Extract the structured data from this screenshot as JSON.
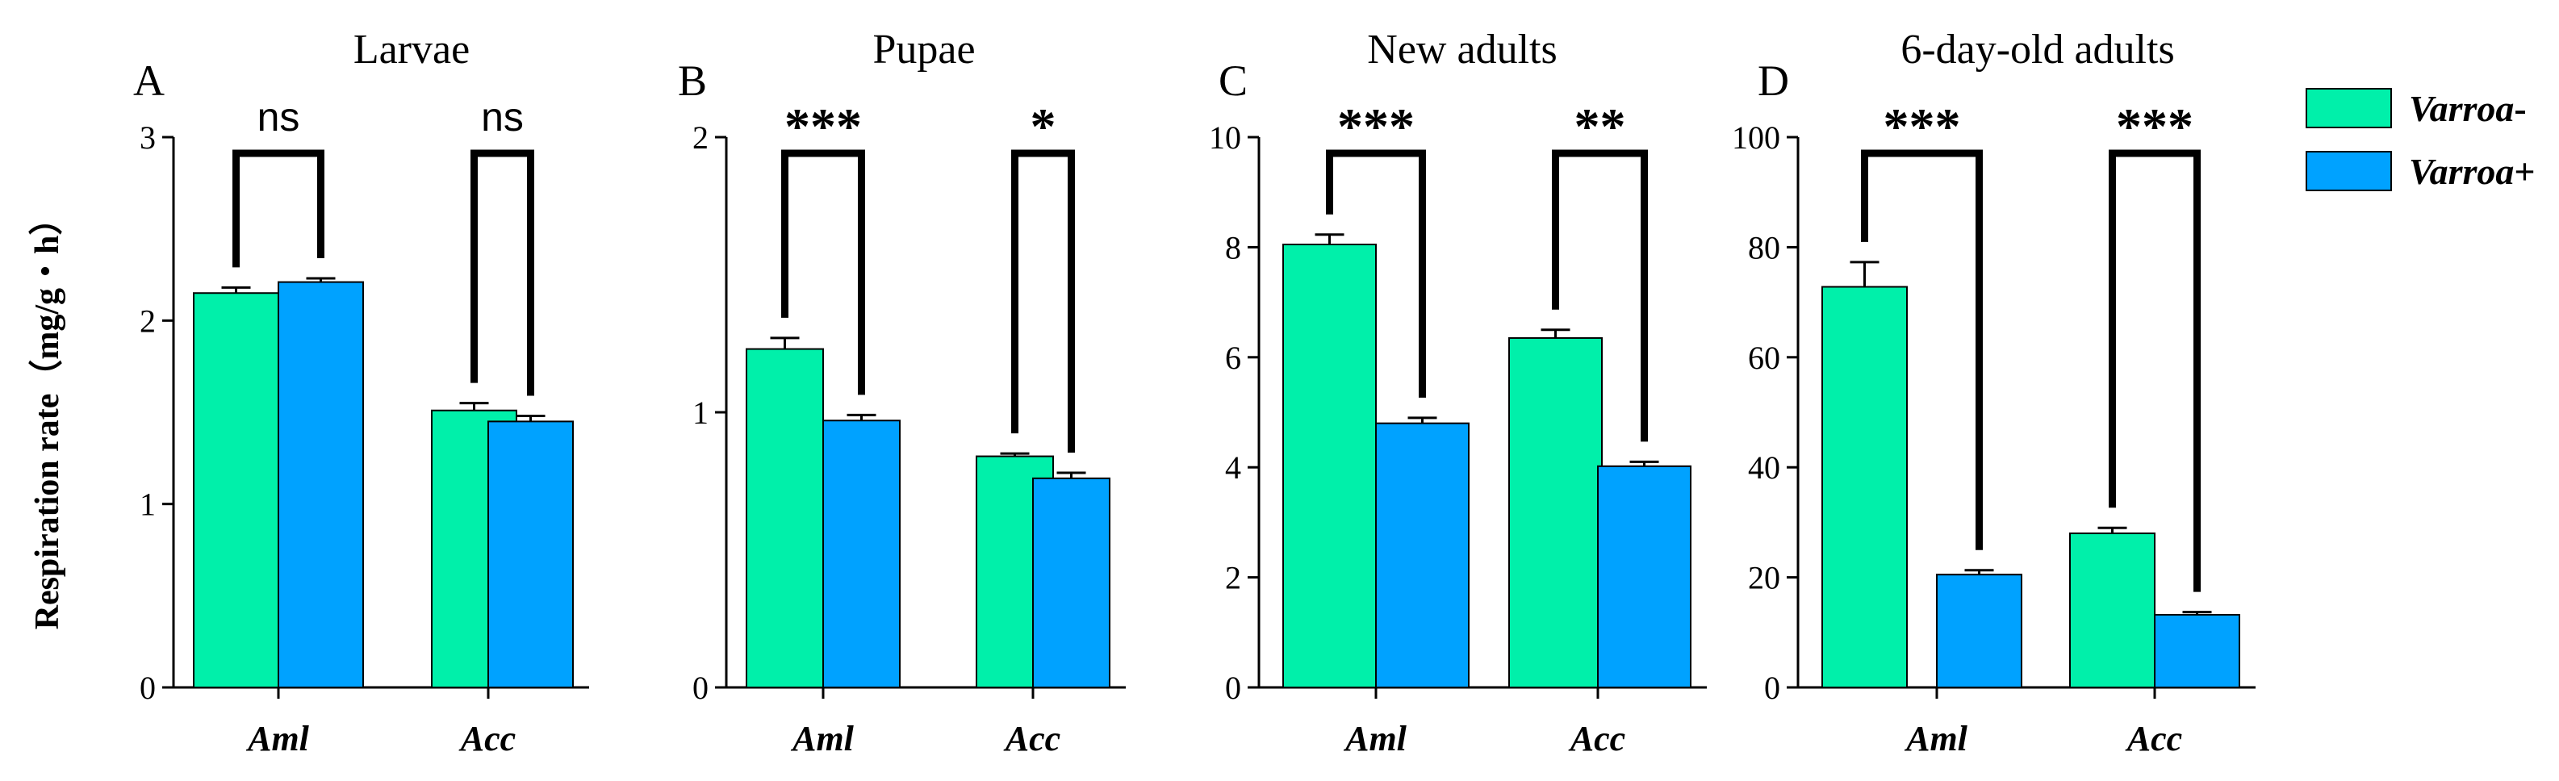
{
  "chart_data": {
    "type": "bar",
    "ylabel": "Respiration rate（mg/g・h）",
    "categories": [
      "Aml",
      "Acc"
    ],
    "legend": {
      "placement": "top-right",
      "entries": [
        {
          "name": "Varroa-",
          "italic": "Varroa",
          "suffix": "-",
          "color": "#00f0aa"
        },
        {
          "name": "Varroa+",
          "italic": "Varroa",
          "suffix": "+",
          "color": "#00a2ff"
        }
      ]
    },
    "panels": [
      {
        "letter": "A",
        "title": "Larvae",
        "ylim": [
          0,
          3
        ],
        "yticks": [
          "0",
          "1",
          "2",
          "3"
        ],
        "series": [
          {
            "name": "Varroa-",
            "values": [
              2.15,
              1.51
            ],
            "errors": [
              0.03,
              0.04
            ]
          },
          {
            "name": "Varroa+",
            "values": [
              2.21,
              1.45
            ],
            "errors": [
              0.02,
              0.03
            ]
          }
        ],
        "significance": [
          "ns",
          "ns"
        ]
      },
      {
        "letter": "B",
        "title": "Pupae",
        "ylim": [
          0,
          2
        ],
        "yticks": [
          "0",
          "1",
          "2"
        ],
        "series": [
          {
            "name": "Varroa-",
            "values": [
              1.23,
              0.84
            ],
            "errors": [
              0.04,
              0.01
            ]
          },
          {
            "name": "Varroa+",
            "values": [
              0.97,
              0.76
            ],
            "errors": [
              0.02,
              0.02
            ]
          }
        ],
        "significance": [
          "***",
          "*"
        ]
      },
      {
        "letter": "C",
        "title": "New adults",
        "ylim": [
          0,
          10
        ],
        "yticks": [
          "0",
          "2",
          "4",
          "6",
          "8",
          "10"
        ],
        "series": [
          {
            "name": "Varroa-",
            "values": [
              8.05,
              6.35
            ],
            "errors": [
              0.18,
              0.15
            ]
          },
          {
            "name": "Varroa+",
            "values": [
              4.8,
              4.02
            ],
            "errors": [
              0.1,
              0.08
            ]
          }
        ],
        "significance": [
          "***",
          "**"
        ]
      },
      {
        "letter": "D",
        "title": "6-day-old adults",
        "ylim": [
          0,
          100
        ],
        "yticks": [
          "0",
          "20",
          "40",
          "60",
          "80",
          "100"
        ],
        "series": [
          {
            "name": "Varroa-",
            "values": [
              72.8,
              28.0
            ],
            "errors": [
              4.5,
              1.0
            ]
          },
          {
            "name": "Varroa+",
            "values": [
              20.5,
              13.2
            ],
            "errors": [
              0.8,
              0.5
            ]
          }
        ],
        "significance": [
          "***",
          "***"
        ]
      }
    ]
  }
}
